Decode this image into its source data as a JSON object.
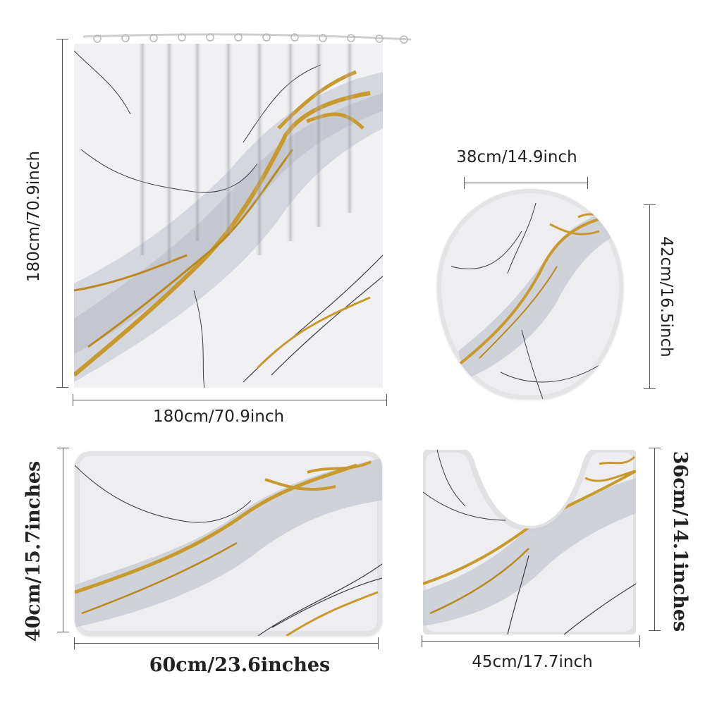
{
  "dimensions": {
    "curtain_height": "180cm/70.9inch",
    "curtain_width": "180cm/70.9inch",
    "lid_width": "38cm/14.9inch",
    "lid_height": "42cm/16.5inch",
    "bath_mat_height": "40cm/15.7inches",
    "bath_mat_width": "60cm/23.6inches",
    "contour_mat_height": "36cm/14.1inches",
    "contour_mat_width": "45cm/17.7inch"
  },
  "colors": {
    "marble_base": "#f3f3f5",
    "marble_cloud": "#c9ccd3",
    "gold_vein": "#c89a2e",
    "dark_vein": "#3a3d46",
    "dimension_line": "#555555"
  }
}
